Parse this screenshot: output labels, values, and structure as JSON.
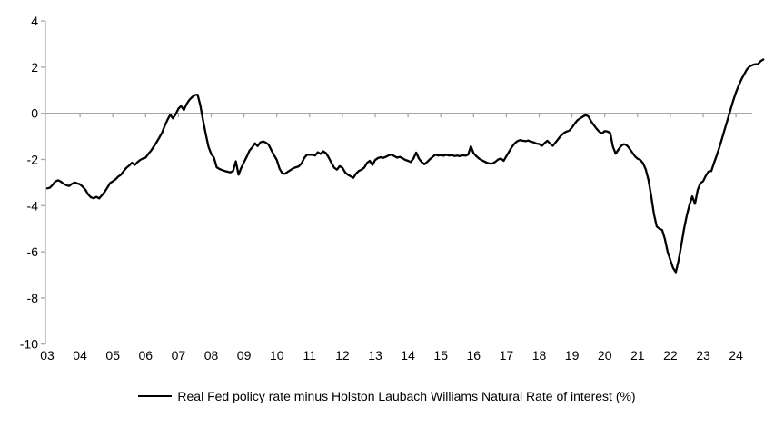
{
  "chart_data": {
    "type": "line",
    "title": "",
    "legend": {
      "label": "Real Fed policy rate minus Holston Laubach Williams Natural Rate of interest (%)",
      "position": "bottom"
    },
    "x_start_year": 2003,
    "frequency": "monthly",
    "x_tick_labels": [
      "03",
      "04",
      "05",
      "06",
      "07",
      "08",
      "09",
      "10",
      "11",
      "12",
      "13",
      "14",
      "15",
      "16",
      "17",
      "18",
      "19",
      "20",
      "21",
      "22",
      "23",
      "24"
    ],
    "y_ticks": [
      4,
      2,
      0,
      -2,
      -4,
      -6,
      -8,
      -10
    ],
    "ylim": [
      -10,
      4
    ],
    "grid": "zero-line-only",
    "line_color": "#000000",
    "axis_color": "#a6a6a6",
    "tick_label_color": "#000000",
    "values": [
      -3.25,
      -3.22,
      -3.1,
      -2.95,
      -2.9,
      -2.96,
      -3.05,
      -3.12,
      -3.15,
      -3.06,
      -3.0,
      -3.04,
      -3.08,
      -3.18,
      -3.32,
      -3.52,
      -3.64,
      -3.68,
      -3.62,
      -3.69,
      -3.55,
      -3.4,
      -3.22,
      -3.02,
      -2.95,
      -2.86,
      -2.74,
      -2.66,
      -2.5,
      -2.36,
      -2.26,
      -2.14,
      -2.24,
      -2.12,
      -2.02,
      -1.96,
      -1.92,
      -1.76,
      -1.62,
      -1.44,
      -1.26,
      -1.06,
      -0.84,
      -0.54,
      -0.28,
      -0.06,
      -0.22,
      -0.04,
      0.2,
      0.32,
      0.14,
      0.4,
      0.58,
      0.7,
      0.79,
      0.81,
      0.35,
      -0.3,
      -0.9,
      -1.45,
      -1.76,
      -1.92,
      -2.34,
      -2.41,
      -2.46,
      -2.5,
      -2.53,
      -2.56,
      -2.5,
      -2.08,
      -2.66,
      -2.36,
      -2.12,
      -1.88,
      -1.62,
      -1.48,
      -1.3,
      -1.42,
      -1.26,
      -1.22,
      -1.27,
      -1.36,
      -1.6,
      -1.82,
      -2.02,
      -2.4,
      -2.6,
      -2.62,
      -2.54,
      -2.46,
      -2.38,
      -2.34,
      -2.3,
      -2.18,
      -1.94,
      -1.8,
      -1.8,
      -1.79,
      -1.83,
      -1.69,
      -1.76,
      -1.65,
      -1.73,
      -1.92,
      -2.15,
      -2.36,
      -2.44,
      -2.29,
      -2.36,
      -2.56,
      -2.66,
      -2.73,
      -2.8,
      -2.62,
      -2.5,
      -2.44,
      -2.35,
      -2.15,
      -2.06,
      -2.24,
      -2.02,
      -1.94,
      -1.9,
      -1.93,
      -1.88,
      -1.82,
      -1.79,
      -1.86,
      -1.92,
      -1.89,
      -1.95,
      -2.02,
      -2.06,
      -2.11,
      -1.96,
      -1.7,
      -1.96,
      -2.11,
      -2.21,
      -2.11,
      -1.99,
      -1.89,
      -1.79,
      -1.83,
      -1.81,
      -1.84,
      -1.8,
      -1.83,
      -1.81,
      -1.85,
      -1.83,
      -1.86,
      -1.82,
      -1.84,
      -1.79,
      -1.43,
      -1.73,
      -1.86,
      -1.96,
      -2.03,
      -2.09,
      -2.15,
      -2.18,
      -2.17,
      -2.1,
      -2.0,
      -1.96,
      -2.06,
      -1.86,
      -1.66,
      -1.46,
      -1.31,
      -1.21,
      -1.16,
      -1.19,
      -1.21,
      -1.18,
      -1.23,
      -1.26,
      -1.31,
      -1.33,
      -1.41,
      -1.29,
      -1.19,
      -1.31,
      -1.41,
      -1.26,
      -1.11,
      -0.96,
      -0.86,
      -0.79,
      -0.75,
      -0.62,
      -0.45,
      -0.3,
      -0.22,
      -0.14,
      -0.08,
      -0.13,
      -0.35,
      -0.51,
      -0.67,
      -0.8,
      -0.87,
      -0.77,
      -0.79,
      -0.85,
      -1.45,
      -1.75,
      -1.58,
      -1.41,
      -1.34,
      -1.38,
      -1.52,
      -1.69,
      -1.86,
      -1.97,
      -2.02,
      -2.16,
      -2.43,
      -2.88,
      -3.58,
      -4.38,
      -4.9,
      -5.0,
      -5.06,
      -5.45,
      -6.0,
      -6.36,
      -6.7,
      -6.88,
      -6.38,
      -5.72,
      -5.02,
      -4.42,
      -3.96,
      -3.6,
      -3.92,
      -3.32,
      -3.02,
      -2.94,
      -2.7,
      -2.52,
      -2.5,
      -2.15,
      -1.82,
      -1.45,
      -1.05,
      -0.65,
      -0.25,
      0.15,
      0.55,
      0.9,
      1.2,
      1.47,
      1.69,
      1.9,
      2.03,
      2.09,
      2.13,
      2.13,
      2.26,
      2.33
    ]
  }
}
